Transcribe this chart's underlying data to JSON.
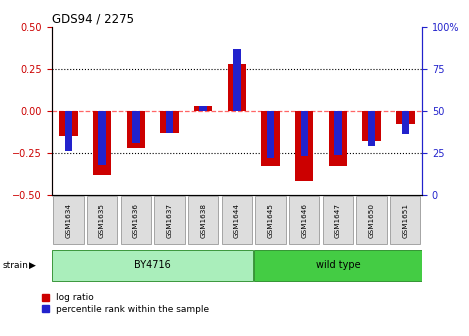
{
  "title": "GDS94 / 2275",
  "samples": [
    "GSM1634",
    "GSM1635",
    "GSM1636",
    "GSM1637",
    "GSM1638",
    "GSM1644",
    "GSM1645",
    "GSM1646",
    "GSM1647",
    "GSM1650",
    "GSM1651"
  ],
  "log_ratio": [
    -0.15,
    -0.38,
    -0.22,
    -0.13,
    0.03,
    0.28,
    -0.33,
    -0.42,
    -0.33,
    -0.18,
    -0.08
  ],
  "percentile_rank": [
    26,
    18,
    31,
    37,
    53,
    87,
    22,
    23,
    24,
    29,
    36
  ],
  "ylim_left": [
    -0.5,
    0.5
  ],
  "ylim_right": [
    0,
    100
  ],
  "yticks_left": [
    -0.5,
    -0.25,
    0,
    0.25,
    0.5
  ],
  "yticks_right": [
    0,
    25,
    50,
    75,
    100
  ],
  "bar_color_red": "#CC0000",
  "bar_color_blue": "#2222CC",
  "hline_color": "#FF6666",
  "dotted_color": "black",
  "background_color": "white",
  "red_bar_width": 0.55,
  "blue_bar_width": 0.22,
  "group1_label": "BY4716",
  "group1_color": "#AAEEBB",
  "group2_label": "wild type",
  "group2_color": "#44CC44",
  "strain_label": "strain",
  "legend_labels": [
    "log ratio",
    "percentile rank within the sample"
  ],
  "label_box_color": "#DDDDDD",
  "left_axis_color": "#CC0000",
  "right_axis_color": "#2222CC"
}
